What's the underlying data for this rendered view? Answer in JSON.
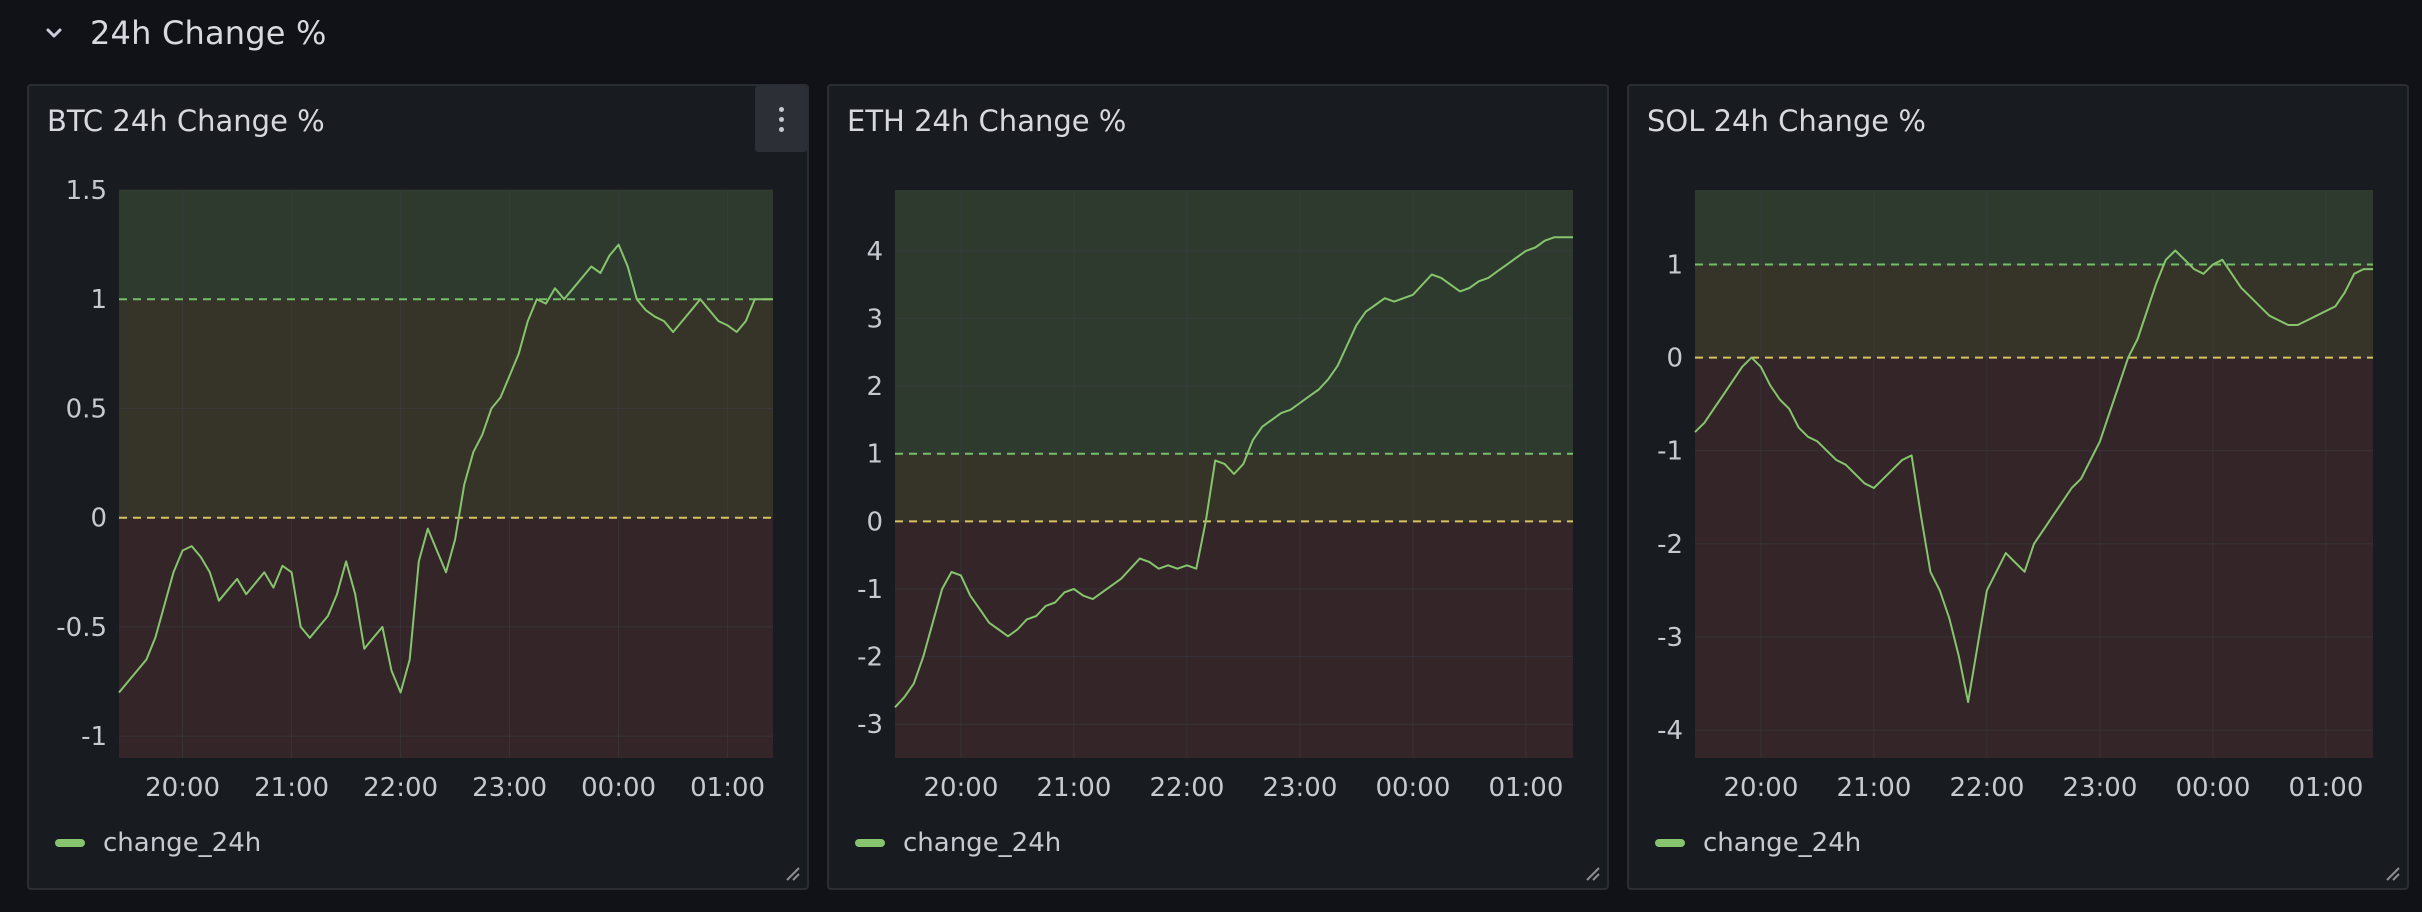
{
  "row": {
    "title": "24h Change %",
    "icon": "chevron-down-icon"
  },
  "panels": [
    {
      "title": "BTC 24h Change %",
      "legend": "change_24h"
    },
    {
      "title": "ETH 24h Change %",
      "legend": "change_24h"
    },
    {
      "title": "SOL 24h Change %",
      "legend": "change_24h"
    }
  ],
  "colors": {
    "line": "#86c46d",
    "threshold_green": "#73bf69",
    "threshold_yellow": "#d6c35f",
    "band_green": "#2f3a2f",
    "band_yellow": "#363428",
    "band_red": "#332528",
    "grid": "#3a3d44"
  },
  "chart_data": [
    {
      "type": "line",
      "title": "BTC 24h Change %",
      "series": [
        {
          "name": "change_24h",
          "x": [
            "19:25",
            "19:30",
            "19:35",
            "19:40",
            "19:45",
            "19:50",
            "19:55",
            "20:00",
            "20:05",
            "20:10",
            "20:15",
            "20:20",
            "20:25",
            "20:30",
            "20:35",
            "20:40",
            "20:45",
            "20:50",
            "20:55",
            "21:00",
            "21:05",
            "21:10",
            "21:15",
            "21:20",
            "21:25",
            "21:30",
            "21:35",
            "21:40",
            "21:45",
            "21:50",
            "21:55",
            "22:00",
            "22:05",
            "22:10",
            "22:15",
            "22:20",
            "22:25",
            "22:30",
            "22:35",
            "22:40",
            "22:45",
            "22:50",
            "22:55",
            "23:00",
            "23:05",
            "23:10",
            "23:15",
            "23:20",
            "23:25",
            "23:30",
            "23:35",
            "23:40",
            "23:45",
            "23:50",
            "23:55",
            "00:00",
            "00:05",
            "00:10",
            "00:15",
            "00:20",
            "00:25",
            "00:30",
            "00:35",
            "00:40",
            "00:45",
            "00:50",
            "00:55",
            "01:00",
            "01:05",
            "01:10",
            "01:15",
            "01:20",
            "01:25"
          ],
          "values": [
            -0.8,
            -0.75,
            -0.7,
            -0.65,
            -0.55,
            -0.4,
            -0.25,
            -0.15,
            -0.13,
            -0.18,
            -0.25,
            -0.38,
            -0.33,
            -0.28,
            -0.35,
            -0.3,
            -0.25,
            -0.32,
            -0.22,
            -0.25,
            -0.5,
            -0.55,
            -0.5,
            -0.45,
            -0.35,
            -0.2,
            -0.35,
            -0.6,
            -0.55,
            -0.5,
            -0.7,
            -0.8,
            -0.65,
            -0.2,
            -0.05,
            -0.15,
            -0.25,
            -0.1,
            0.15,
            0.3,
            0.38,
            0.5,
            0.55,
            0.65,
            0.75,
            0.9,
            1.0,
            0.98,
            1.05,
            1.0,
            1.05,
            1.1,
            1.15,
            1.12,
            1.2,
            1.25,
            1.15,
            1.0,
            0.95,
            0.92,
            0.9,
            0.85,
            0.9,
            0.95,
            1.0,
            0.95,
            0.9,
            0.88,
            0.85,
            0.9,
            1.0,
            1.0,
            1.0
          ]
        }
      ],
      "x_ticks": [
        "20:00",
        "21:00",
        "22:00",
        "23:00",
        "00:00",
        "01:00"
      ],
      "y_ticks": [
        1.5,
        1,
        0.5,
        0,
        -0.5,
        -1
      ],
      "y_tick_labels": [
        "1.5",
        "1",
        "0.5",
        "0",
        "-0.5",
        "-1"
      ],
      "ylim": [
        -1.1,
        1.5
      ],
      "thresholds": [
        0,
        1
      ],
      "grid": true,
      "legend_position": "bottom-left"
    },
    {
      "type": "line",
      "title": "ETH 24h Change %",
      "series": [
        {
          "name": "change_24h",
          "values": [
            -2.75,
            -2.6,
            -2.4,
            -2.0,
            -1.5,
            -1.0,
            -0.75,
            -0.8,
            -1.1,
            -1.3,
            -1.5,
            -1.6,
            -1.7,
            -1.6,
            -1.45,
            -1.4,
            -1.25,
            -1.2,
            -1.05,
            -1.0,
            -1.1,
            -1.15,
            -1.05,
            -0.95,
            -0.85,
            -0.7,
            -0.55,
            -0.6,
            -0.7,
            -0.65,
            -0.7,
            -0.65,
            -0.7,
            0.0,
            0.9,
            0.85,
            0.7,
            0.85,
            1.2,
            1.4,
            1.5,
            1.6,
            1.65,
            1.75,
            1.85,
            1.95,
            2.1,
            2.3,
            2.6,
            2.9,
            3.1,
            3.2,
            3.3,
            3.25,
            3.3,
            3.35,
            3.5,
            3.65,
            3.6,
            3.5,
            3.4,
            3.45,
            3.55,
            3.6,
            3.7,
            3.8,
            3.9,
            4.0,
            4.05,
            4.15,
            4.2,
            4.2,
            4.2
          ]
        }
      ],
      "x_ticks": [
        "20:00",
        "21:00",
        "22:00",
        "23:00",
        "00:00",
        "01:00"
      ],
      "y_ticks": [
        4,
        3,
        2,
        1,
        0,
        -1,
        -2,
        -3
      ],
      "y_tick_labels": [
        "4",
        "3",
        "2",
        "1",
        "0",
        "-1",
        "-2",
        "-3"
      ],
      "ylim": [
        -3.5,
        4.9
      ],
      "thresholds": [
        0,
        1
      ],
      "grid": true,
      "legend_position": "bottom-left"
    },
    {
      "type": "line",
      "title": "SOL 24h Change %",
      "series": [
        {
          "name": "change_24h",
          "values": [
            -0.8,
            -0.7,
            -0.55,
            -0.4,
            -0.25,
            -0.1,
            0.0,
            -0.1,
            -0.3,
            -0.45,
            -0.55,
            -0.75,
            -0.85,
            -0.9,
            -1.0,
            -1.1,
            -1.15,
            -1.25,
            -1.35,
            -1.4,
            -1.3,
            -1.2,
            -1.1,
            -1.05,
            -1.7,
            -2.3,
            -2.5,
            -2.8,
            -3.2,
            -3.7,
            -3.1,
            -2.5,
            -2.3,
            -2.1,
            -2.2,
            -2.3,
            -2.0,
            -1.85,
            -1.7,
            -1.55,
            -1.4,
            -1.3,
            -1.1,
            -0.9,
            -0.6,
            -0.3,
            0.0,
            0.2,
            0.5,
            0.8,
            1.05,
            1.15,
            1.05,
            0.95,
            0.9,
            1.0,
            1.05,
            0.9,
            0.75,
            0.65,
            0.55,
            0.45,
            0.4,
            0.35,
            0.35,
            0.4,
            0.45,
            0.5,
            0.55,
            0.7,
            0.9,
            0.95,
            0.95
          ]
        }
      ],
      "x_ticks": [
        "20:00",
        "21:00",
        "22:00",
        "23:00",
        "00:00",
        "01:00"
      ],
      "y_ticks": [
        1,
        0,
        -1,
        -2,
        -3,
        -4
      ],
      "y_tick_labels": [
        "1",
        "0",
        "-1",
        "-2",
        "-3",
        "-4"
      ],
      "ylim": [
        -4.3,
        1.8
      ],
      "thresholds": [
        0,
        1
      ],
      "grid": true,
      "legend_position": "bottom-left"
    }
  ]
}
